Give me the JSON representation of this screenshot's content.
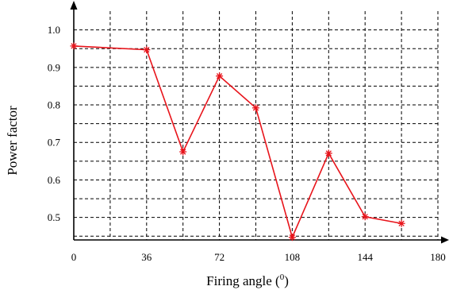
{
  "chart_data": {
    "type": "line",
    "title": "",
    "xlabel": "Firing angle (",
    "xlabel_superscript": "0",
    "xlabel_suffix": ")",
    "ylabel": "Power factor",
    "xlim": [
      0,
      180
    ],
    "ylim": [
      0.44,
      1.05
    ],
    "x_ticks": [
      0,
      36,
      72,
      108,
      144,
      180
    ],
    "x_tick_labels": [
      "0",
      "36",
      "72",
      "108",
      "144",
      "180"
    ],
    "x_grid": [
      0,
      18,
      36,
      54,
      72,
      90,
      108,
      126,
      144,
      162,
      180
    ],
    "y_ticks": [
      0.5,
      0.6,
      0.7,
      0.8,
      0.9,
      1.0
    ],
    "y_tick_labels": [
      "0.5",
      "0.6",
      "0.7",
      "0.8",
      "0.9",
      "1.0"
    ],
    "y_grid": [
      0.45,
      0.5,
      0.55,
      0.6,
      0.65,
      0.7,
      0.75,
      0.8,
      0.85,
      0.9,
      0.95,
      1.0
    ],
    "grid": true,
    "grid_style": "dashed",
    "series": [
      {
        "color": "#e8141b",
        "marker": "asterisk",
        "x": [
          0,
          36,
          54,
          72,
          90,
          108,
          126,
          144,
          162
        ],
        "values": [
          0.957,
          0.947,
          0.675,
          0.877,
          0.792,
          0.447,
          0.671,
          0.502,
          0.484
        ]
      }
    ]
  }
}
